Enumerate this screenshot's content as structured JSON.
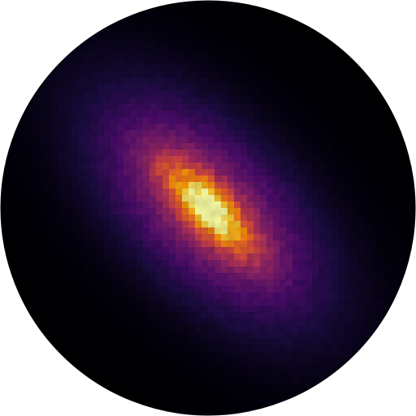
{
  "colors": {
    "background": "#ffffff",
    "colormap": [
      "#000004",
      "#1b0c41",
      "#4a0c6b",
      "#781c6d",
      "#a52c60",
      "#cf4446",
      "#ed6925",
      "#fb9b06",
      "#f7d13d",
      "#fcffa4"
    ]
  },
  "map": {
    "shape": "disk",
    "colormap_name": "inferno",
    "pattern": "elongated-diagonal-density",
    "peak_level": 1.0
  }
}
